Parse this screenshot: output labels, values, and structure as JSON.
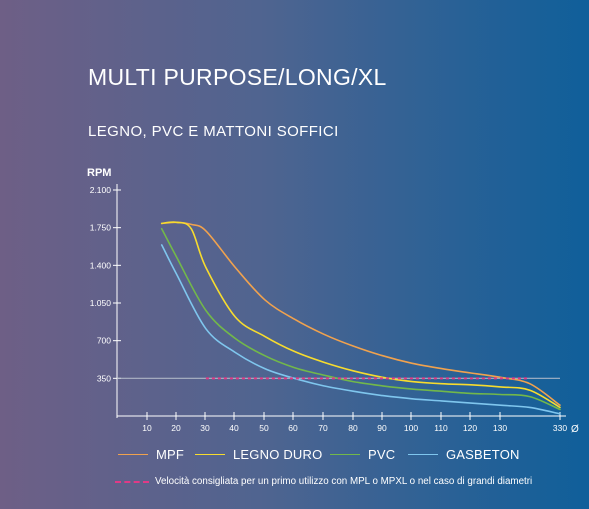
{
  "colors": {
    "mpf": "#f0a24e",
    "legno_duro": "#f7dc2e",
    "pvc": "#72b84a",
    "gasbeton": "#7fc6ee",
    "recommended": "#e03a86",
    "axis": "#ffffff"
  },
  "chart_data": {
    "type": "line",
    "title": "MULTI PURPOSE/LONG/XL",
    "subtitle": "LEGNO, PVC E MATTONI SOFFICI",
    "ylabel": "RPM",
    "xlabel": "",
    "x_unit": "Ø",
    "x_ticks": [
      "10",
      "20",
      "30",
      "40",
      "50",
      "60",
      "70",
      "80",
      "90",
      "100",
      "110",
      "120",
      "130",
      "330"
    ],
    "y_ticks": [
      "350",
      "700",
      "1.050",
      "1.400",
      "1.750",
      "2.100"
    ],
    "ylim": [
      0,
      2100
    ],
    "grid": false,
    "legend_position": "bottom",
    "series": [
      {
        "name": "MPF",
        "x": [
          15,
          20,
          25,
          30,
          40,
          50,
          60,
          70,
          80,
          90,
          100,
          110,
          120,
          130,
          140,
          330
        ],
        "y": [
          1790,
          1800,
          1780,
          1720,
          1380,
          1080,
          900,
          760,
          650,
          560,
          490,
          440,
          400,
          360,
          300,
          100
        ]
      },
      {
        "name": "LEGNO DURO",
        "x": [
          15,
          20,
          25,
          30,
          40,
          50,
          60,
          70,
          80,
          90,
          100,
          110,
          120,
          130,
          140,
          330
        ],
        "y": [
          1790,
          1800,
          1740,
          1380,
          920,
          740,
          600,
          500,
          420,
          360,
          320,
          300,
          290,
          270,
          240,
          80
        ]
      },
      {
        "name": "PVC",
        "x": [
          15,
          20,
          30,
          40,
          50,
          60,
          70,
          80,
          90,
          100,
          110,
          120,
          130,
          140,
          330
        ],
        "y": [
          1740,
          1480,
          980,
          720,
          560,
          450,
          380,
          320,
          280,
          250,
          230,
          210,
          200,
          180,
          60
        ]
      },
      {
        "name": "GASBETON",
        "x": [
          15,
          20,
          30,
          40,
          50,
          60,
          70,
          80,
          90,
          100,
          110,
          120,
          130,
          140,
          330
        ],
        "y": [
          1590,
          1320,
          810,
          590,
          440,
          350,
          280,
          230,
          190,
          160,
          140,
          120,
          100,
          80,
          20
        ]
      }
    ],
    "recommended_line": {
      "label": "Velocità consigliata per un primo utilizzo con MPL o MPXL o nel caso di grandi diametri",
      "x": [
        30,
        140
      ],
      "y": 350
    }
  }
}
